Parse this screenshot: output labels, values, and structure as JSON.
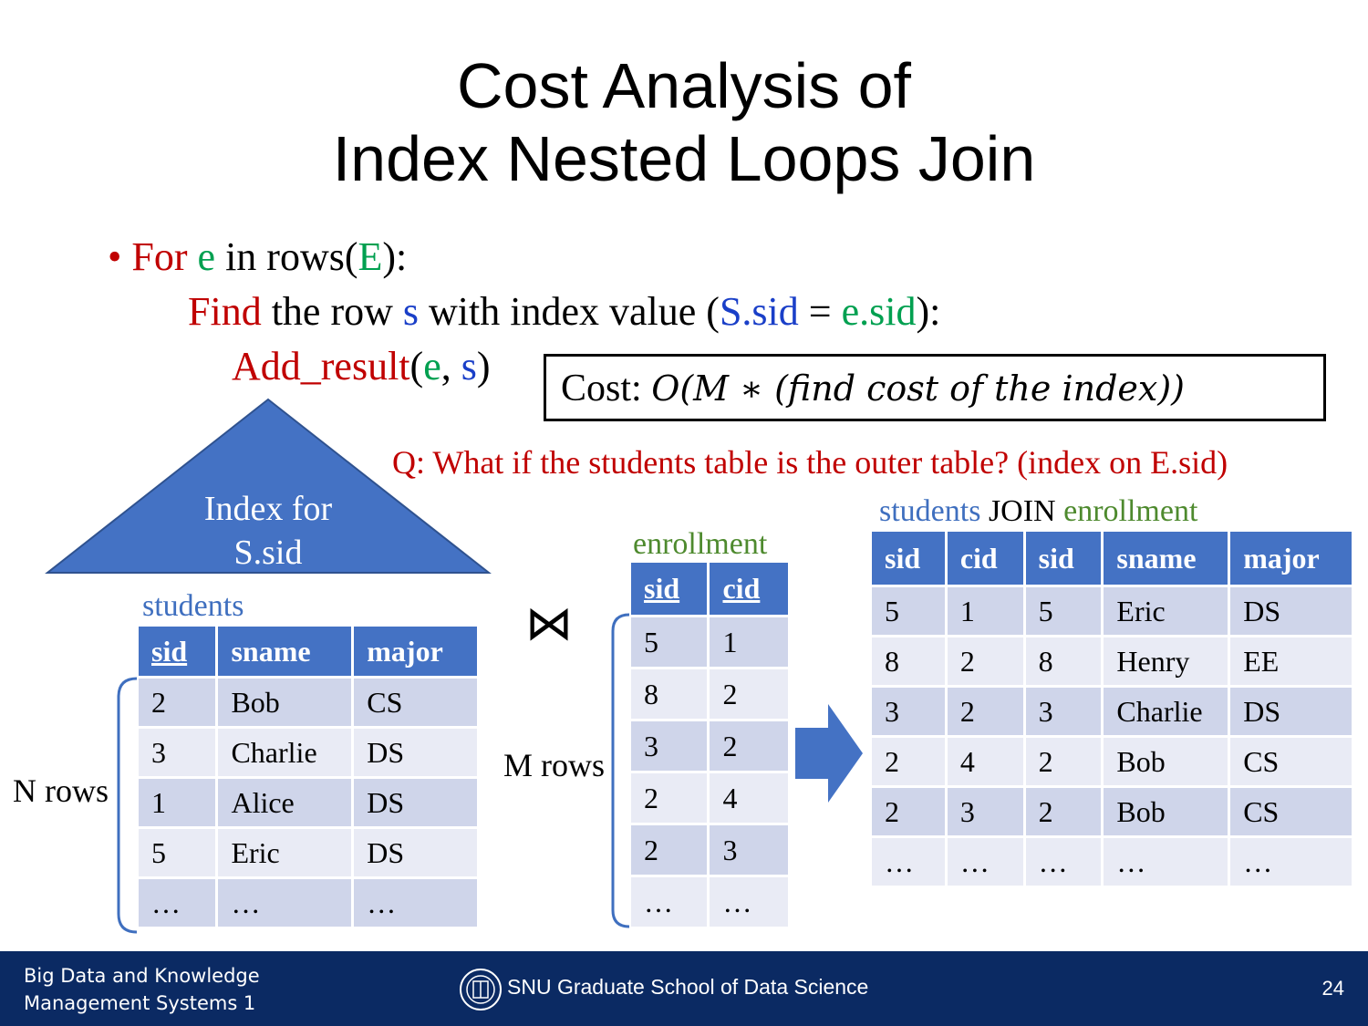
{
  "slide": {
    "title_line1": "Cost Analysis of",
    "title_line2": "Index Nested Loops Join"
  },
  "algorithm": {
    "bullet": "•",
    "line1": {
      "for": "For",
      "e": "e",
      "in_rows": "in rows(",
      "E": "E",
      "close": "):"
    },
    "line2": {
      "find": "Find",
      "the_row": "the row",
      "s": "s",
      "with_index": "with index value (",
      "S_sid": "S.sid",
      "eq": "=",
      "e_sid": "e.sid",
      "close": "):"
    },
    "line3": {
      "add_result": "Add_result",
      "open": "(",
      "e": "e",
      "comma": ",",
      "s": "s",
      "close": ")"
    }
  },
  "cost": {
    "label": "Cost:",
    "formula": "O(M ∗ (find cost of the index))"
  },
  "question": "Q: What if the students table is the outer table? (index on E.sid)",
  "index": {
    "line1": "Index for",
    "line2": "S.sid",
    "color": "#4472c4"
  },
  "students": {
    "label": "students",
    "headers": [
      "sid",
      "sname",
      "major"
    ],
    "rows": [
      [
        "2",
        "Bob",
        "CS"
      ],
      [
        "3",
        "Charlie",
        "DS"
      ],
      [
        "1",
        "Alice",
        "DS"
      ],
      [
        "5",
        "Eric",
        "DS"
      ],
      [
        "…",
        "…",
        "…"
      ]
    ],
    "rows_label": "N rows"
  },
  "join_symbol": "⋈",
  "enrollment": {
    "label": "enrollment",
    "headers": [
      "sid",
      "cid"
    ],
    "rows": [
      [
        "5",
        "1"
      ],
      [
        "8",
        "2"
      ],
      [
        "3",
        "2"
      ],
      [
        "2",
        "4"
      ],
      [
        "2",
        "3"
      ],
      [
        "…",
        "…"
      ]
    ],
    "rows_label": "M rows"
  },
  "result": {
    "label_part1": "students",
    "label_part2": "JOIN",
    "label_part3": "enrollment",
    "headers": [
      "sid",
      "cid",
      "sid",
      "sname",
      "major"
    ],
    "rows": [
      [
        "5",
        "1",
        "5",
        "Eric",
        "DS"
      ],
      [
        "8",
        "2",
        "8",
        "Henry",
        "EE"
      ],
      [
        "3",
        "2",
        "3",
        "Charlie",
        "DS"
      ],
      [
        "2",
        "4",
        "2",
        "Bob",
        "CS"
      ],
      [
        "2",
        "3",
        "2",
        "Bob",
        "CS"
      ],
      [
        "…",
        "…",
        "…",
        "…",
        "…"
      ]
    ]
  },
  "footer": {
    "course_line1": "Big Data and Knowledge",
    "course_line2": "Management Systems 1",
    "school": "SNU Graduate School of Data Science",
    "page_number": "24"
  }
}
